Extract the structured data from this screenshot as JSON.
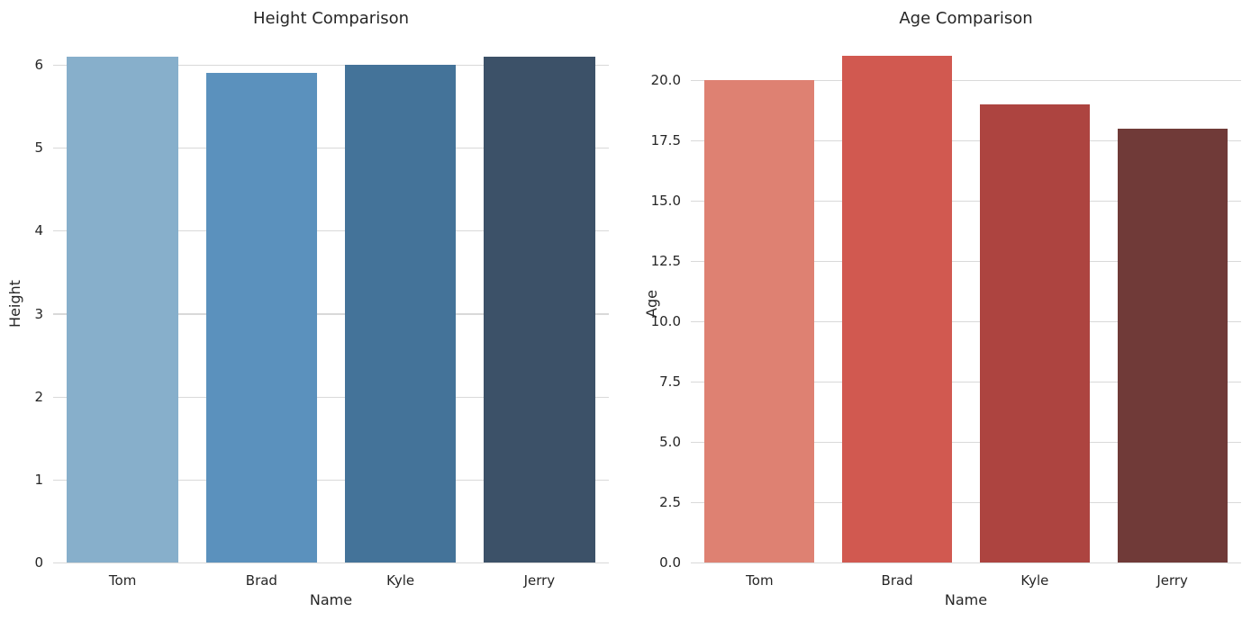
{
  "figure": {
    "background": "#ffffff",
    "text_color": "#262626",
    "grid_color": "#d9d9d9"
  },
  "chart_data": [
    {
      "type": "bar",
      "title": "Height Comparison",
      "xlabel": "Name",
      "ylabel": "Height",
      "categories": [
        "Tom",
        "Brad",
        "Kyle",
        "Jerry"
      ],
      "values": [
        6.1,
        5.9,
        6.0,
        6.1
      ],
      "bar_colors": [
        "#87afcb",
        "#5b91bd",
        "#447399",
        "#3c5168"
      ],
      "yticks": [
        0,
        1,
        2,
        3,
        4,
        5,
        6
      ],
      "ytick_labels": [
        "0",
        "1",
        "2",
        "3",
        "4",
        "5",
        "6"
      ],
      "ylim": [
        0,
        6.24
      ],
      "grid": true,
      "legend": false,
      "bar_width_fraction": 0.8
    },
    {
      "type": "bar",
      "title": "Age Comparison",
      "xlabel": "Name",
      "ylabel": "Age",
      "categories": [
        "Tom",
        "Brad",
        "Kyle",
        "Jerry"
      ],
      "values": [
        20,
        21,
        19,
        18
      ],
      "bar_colors": [
        "#de8172",
        "#d15950",
        "#ad4440",
        "#703a38"
      ],
      "yticks": [
        0,
        2.5,
        5,
        7.5,
        10,
        12.5,
        15,
        17.5,
        20
      ],
      "ytick_labels": [
        "0.0",
        "2.5",
        "5.0",
        "7.5",
        "10.0",
        "12.5",
        "15.0",
        "17.5",
        "20.0"
      ],
      "ylim": [
        0,
        21.46
      ],
      "grid": true,
      "legend": false,
      "bar_width_fraction": 0.8
    }
  ]
}
